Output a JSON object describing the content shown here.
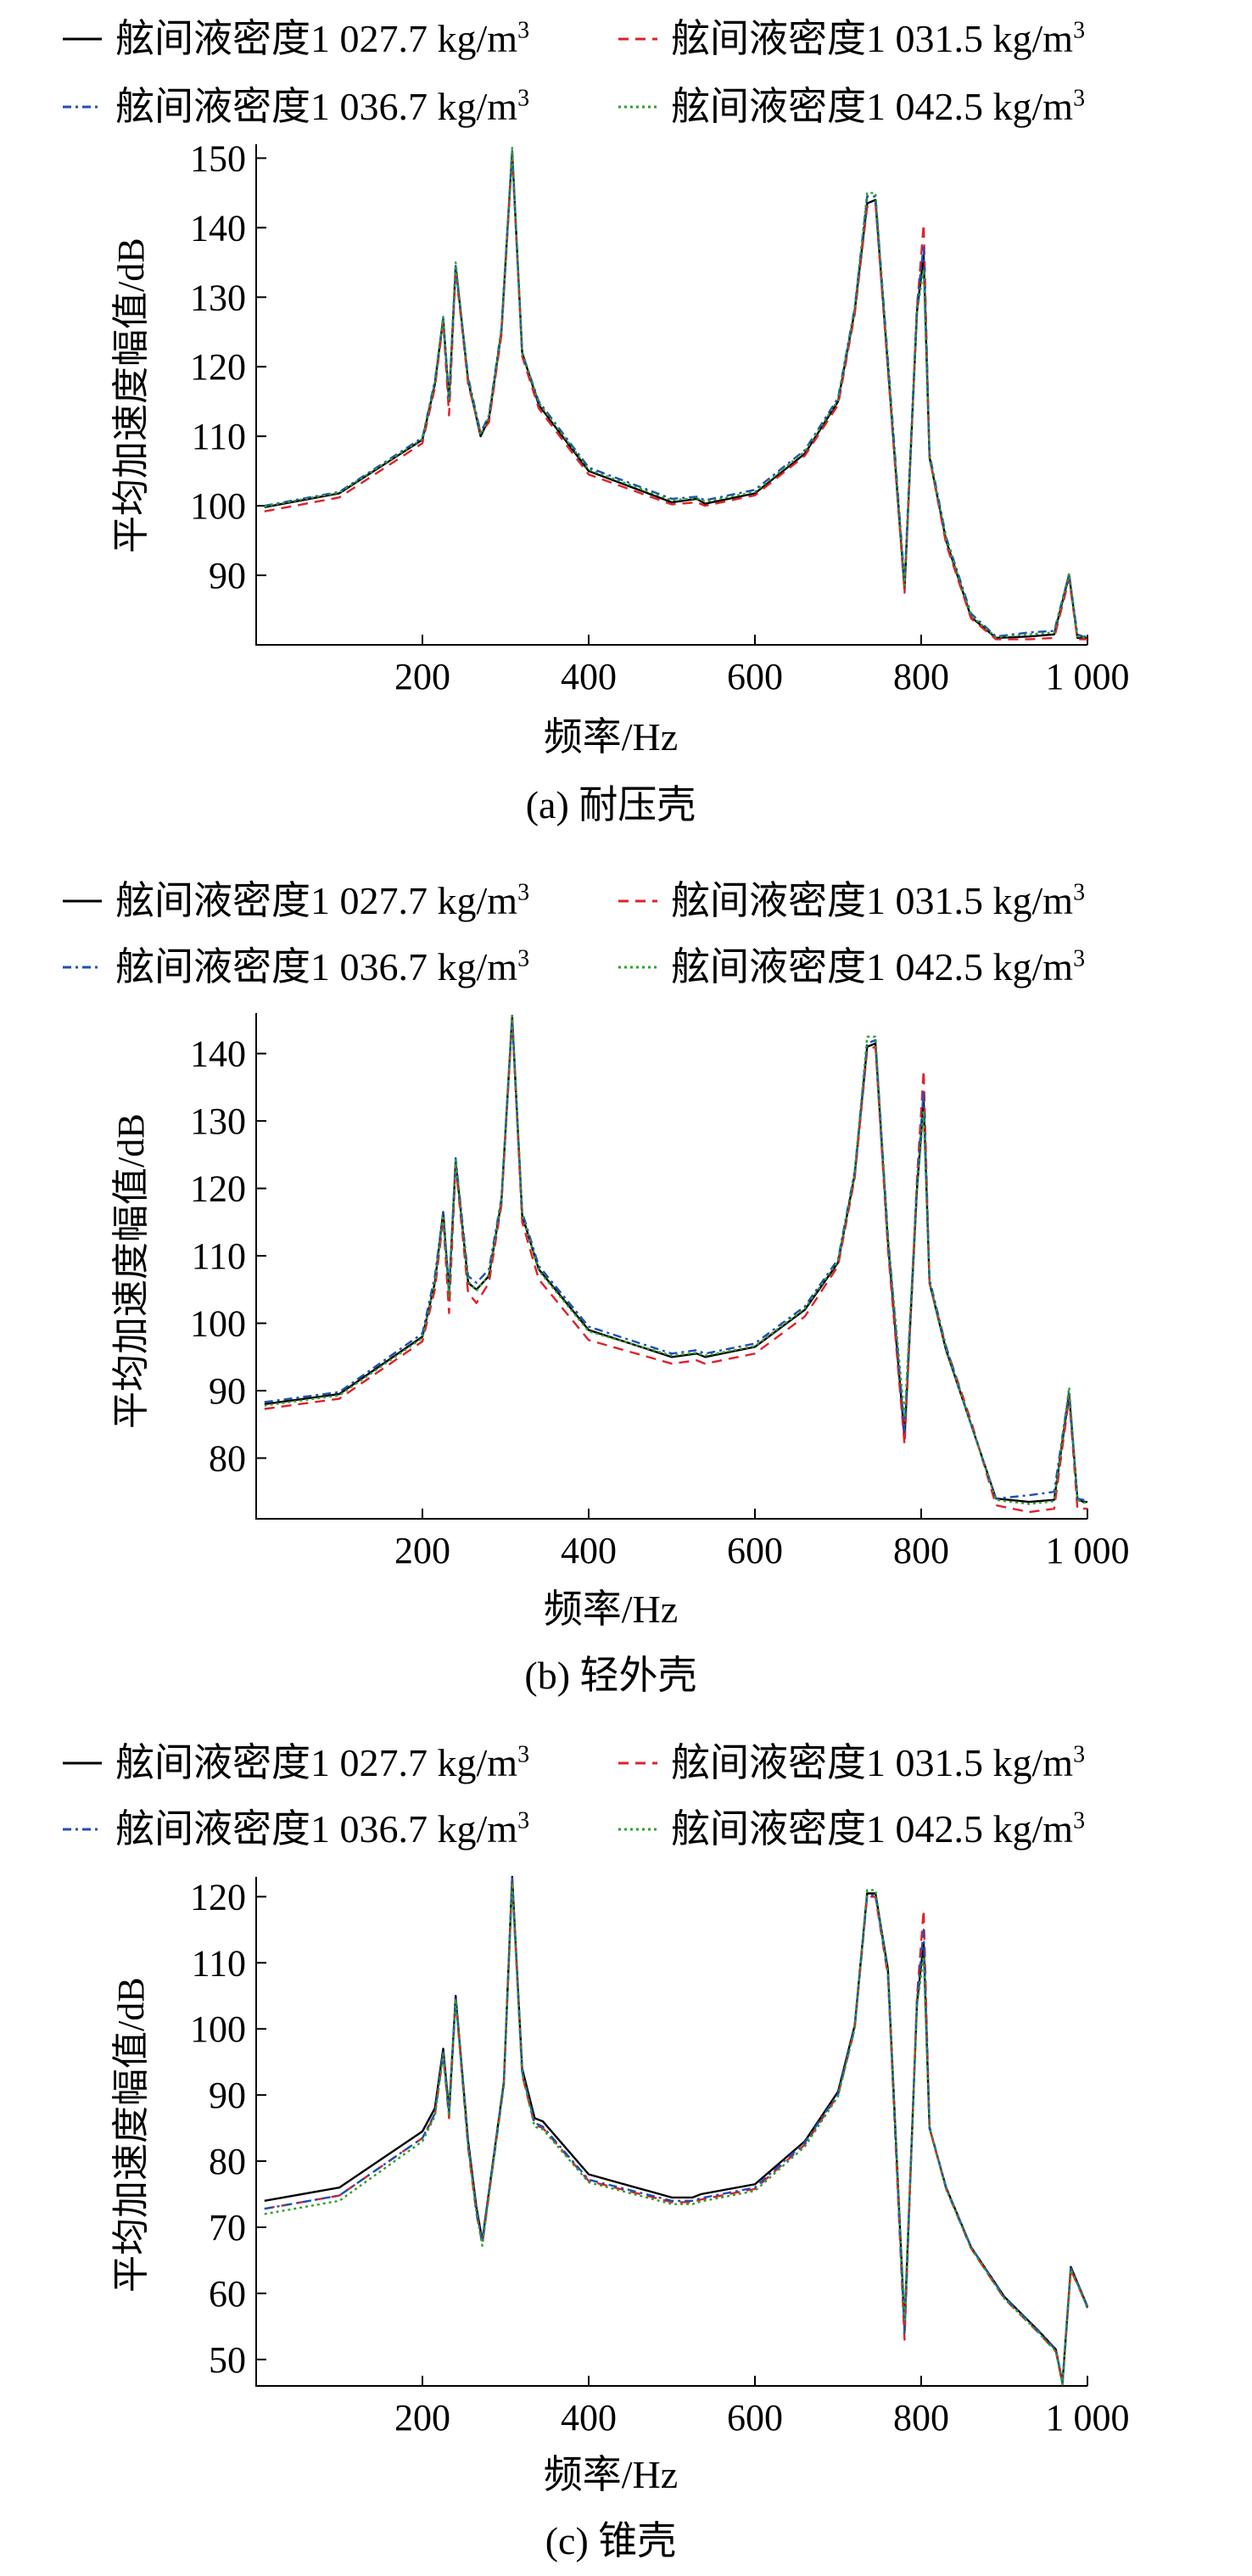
{
  "legend": {
    "items": [
      {
        "label": "舷间液密度1 027.7 kg/m",
        "sup": "3",
        "color": "#000000",
        "dash": ""
      },
      {
        "label": "舷间液密度1 031.5 kg/m",
        "sup": "3",
        "color": "#e0202a",
        "dash": "12,8"
      },
      {
        "label": "舷间液密度1 036.7 kg/m",
        "sup": "3",
        "color": "#1f4fb5",
        "dash": "10,5,3,5"
      },
      {
        "label": "舷间液密度1 042.5 kg/m",
        "sup": "3",
        "color": "#2ca02c",
        "dash": "3,4"
      }
    ]
  },
  "chart_data": [
    {
      "type": "line",
      "caption": "(a) 耐压壳",
      "xlabel": "频率/Hz",
      "ylabel": "平均加速度幅值/dB",
      "xlim": [
        0,
        1000
      ],
      "ylim": [
        80,
        152
      ],
      "xticks": [
        {
          "v": 200,
          "t": "200"
        },
        {
          "v": 400,
          "t": "400"
        },
        {
          "v": 600,
          "t": "600"
        },
        {
          "v": 800,
          "t": "800"
        },
        {
          "v": 1000,
          "t": "1 000"
        }
      ],
      "yticks": [
        {
          "v": 90,
          "t": "90"
        },
        {
          "v": 100,
          "t": "100"
        },
        {
          "v": 110,
          "t": "110"
        },
        {
          "v": 120,
          "t": "120"
        },
        {
          "v": 130,
          "t": "130"
        },
        {
          "v": 140,
          "t": "140"
        },
        {
          "v": 150,
          "t": "150"
        }
      ],
      "x": [
        10,
        100,
        200,
        215,
        225,
        232,
        240,
        255,
        270,
        280,
        295,
        308,
        320,
        340,
        400,
        500,
        530,
        540,
        600,
        660,
        700,
        720,
        735,
        745,
        760,
        780,
        795,
        803,
        810,
        830,
        860,
        890,
        930,
        960,
        978,
        988,
        995,
        1000
      ],
      "series": [
        {
          "name": "舷间液密度1 027.7 kg/m3",
          "values": [
            99.8,
            101.8,
            109.5,
            117.5,
            127.0,
            115.0,
            134.5,
            118.0,
            110.0,
            112.5,
            125.0,
            151.0,
            122.0,
            114.5,
            105.0,
            100.5,
            101.0,
            100.3,
            101.8,
            107.5,
            115.0,
            128.0,
            143.5,
            144.0,
            120.0,
            88.0,
            128.0,
            136.0,
            107.0,
            95.0,
            84.0,
            81.0,
            81.2,
            81.5,
            90.0,
            81.0,
            81.0,
            81.0
          ]
        },
        {
          "name": "舷间液密度1 031.5 kg/m3",
          "values": [
            99.2,
            101.2,
            109.0,
            117.0,
            126.5,
            113.0,
            134.0,
            117.5,
            110.5,
            112.0,
            124.5,
            150.5,
            121.5,
            114.0,
            104.5,
            100.2,
            100.5,
            100.0,
            101.5,
            107.2,
            114.5,
            127.5,
            143.0,
            143.5,
            119.5,
            87.5,
            128.5,
            140.5,
            107.0,
            94.5,
            83.8,
            80.8,
            80.8,
            81.0,
            89.5,
            80.8,
            80.8,
            80.8
          ]
        },
        {
          "name": "舷间液密度1 036.7 kg/m3",
          "values": [
            100.0,
            102.0,
            109.8,
            118.0,
            127.0,
            115.5,
            134.5,
            118.5,
            110.5,
            113.0,
            125.5,
            151.0,
            122.0,
            115.0,
            105.5,
            101.0,
            101.3,
            100.8,
            102.3,
            108.0,
            115.5,
            128.5,
            144.5,
            144.5,
            121.0,
            89.0,
            129.0,
            137.5,
            107.5,
            95.5,
            84.5,
            81.2,
            81.8,
            82.0,
            90.2,
            81.5,
            81.2,
            81.2
          ]
        },
        {
          "name": "舷间液密度1 042.5 kg/m3",
          "values": [
            99.9,
            101.9,
            109.6,
            117.8,
            127.2,
            115.0,
            135.0,
            118.2,
            110.2,
            112.8,
            125.2,
            151.5,
            122.2,
            114.8,
            105.2,
            100.8,
            101.1,
            100.6,
            102.0,
            107.8,
            115.2,
            128.3,
            145.0,
            145.0,
            120.5,
            88.5,
            128.0,
            134.0,
            107.2,
            95.2,
            84.2,
            81.1,
            81.5,
            81.8,
            90.3,
            81.2,
            81.1,
            81.1
          ]
        }
      ]
    },
    {
      "type": "line",
      "caption": "(b) 轻外壳",
      "xlabel": "频率/Hz",
      "ylabel": "平均加速度幅值/dB",
      "xlim": [
        0,
        1000
      ],
      "ylim": [
        71,
        146
      ],
      "xticks": [
        {
          "v": 200,
          "t": "200"
        },
        {
          "v": 400,
          "t": "400"
        },
        {
          "v": 600,
          "t": "600"
        },
        {
          "v": 800,
          "t": "800"
        },
        {
          "v": 1000,
          "t": "1 000"
        }
      ],
      "yticks": [
        {
          "v": 80,
          "t": "80"
        },
        {
          "v": 90,
          "t": "90"
        },
        {
          "v": 100,
          "t": "100"
        },
        {
          "v": 110,
          "t": "110"
        },
        {
          "v": 120,
          "t": "120"
        },
        {
          "v": 130,
          "t": "130"
        },
        {
          "v": 140,
          "t": "140"
        }
      ],
      "x": [
        10,
        100,
        200,
        215,
        225,
        232,
        240,
        255,
        265,
        280,
        295,
        308,
        320,
        340,
        400,
        500,
        530,
        540,
        600,
        660,
        700,
        720,
        735,
        745,
        760,
        780,
        795,
        803,
        810,
        830,
        860,
        890,
        930,
        960,
        978,
        988,
        995,
        1000
      ],
      "series": [
        {
          "name": "舷间液密度1 027.7 kg/m3",
          "values": [
            88.0,
            89.5,
            98.0,
            106.0,
            116.5,
            104.5,
            124.0,
            106.0,
            105.0,
            107.0,
            118.0,
            145.5,
            116.0,
            108.0,
            99.0,
            95.0,
            95.5,
            95.0,
            96.5,
            102.0,
            109.0,
            122.0,
            141.0,
            141.5,
            112.0,
            83.0,
            120.0,
            133.0,
            106.0,
            96.0,
            85.0,
            74.0,
            73.5,
            73.8,
            89.5,
            74.0,
            73.5,
            73.5
          ]
        },
        {
          "name": "舷间液密度1 031.5 kg/m3",
          "values": [
            87.3,
            88.8,
            97.3,
            105.0,
            115.5,
            101.5,
            123.5,
            104.5,
            103.0,
            106.0,
            117.5,
            145.0,
            115.0,
            106.5,
            97.5,
            94.0,
            94.5,
            94.0,
            95.5,
            101.0,
            108.5,
            121.5,
            140.5,
            141.0,
            111.0,
            82.0,
            121.5,
            137.5,
            106.0,
            96.5,
            85.5,
            73.0,
            72.0,
            72.5,
            89.0,
            72.5,
            72.5,
            72.5
          ]
        },
        {
          "name": "舷间液密度1 036.7 kg/m3",
          "values": [
            88.3,
            89.8,
            98.5,
            107.0,
            116.5,
            105.0,
            124.5,
            107.0,
            106.0,
            108.0,
            118.5,
            145.5,
            116.5,
            108.5,
            99.5,
            95.5,
            96.0,
            95.5,
            97.0,
            102.5,
            109.5,
            122.5,
            141.5,
            142.0,
            113.0,
            84.0,
            121.0,
            134.5,
            106.5,
            96.5,
            85.0,
            74.0,
            74.5,
            75.0,
            90.0,
            74.0,
            73.8,
            73.8
          ]
        },
        {
          "name": "舷间液密度1 042.5 kg/m3",
          "values": [
            87.8,
            89.3,
            97.8,
            106.0,
            116.0,
            104.0,
            124.2,
            106.2,
            104.8,
            107.2,
            118.2,
            146.0,
            116.2,
            107.8,
            98.8,
            95.2,
            95.6,
            95.2,
            96.6,
            102.2,
            109.2,
            122.2,
            142.5,
            142.5,
            112.5,
            86.0,
            120.0,
            131.5,
            106.2,
            96.2,
            85.0,
            73.8,
            73.2,
            73.6,
            90.5,
            73.8,
            73.4,
            73.4
          ]
        }
      ]
    },
    {
      "type": "line",
      "caption": "(c) 锥壳",
      "xlabel": "频率/Hz",
      "ylabel": "平均加速度幅值/dB",
      "xlim": [
        0,
        1000
      ],
      "ylim": [
        46,
        123
      ],
      "xticks": [
        {
          "v": 200,
          "t": "200"
        },
        {
          "v": 400,
          "t": "400"
        },
        {
          "v": 600,
          "t": "600"
        },
        {
          "v": 800,
          "t": "800"
        },
        {
          "v": 1000,
          "t": "1 000"
        }
      ],
      "yticks": [
        {
          "v": 50,
          "t": "50"
        },
        {
          "v": 60,
          "t": "60"
        },
        {
          "v": 70,
          "t": "70"
        },
        {
          "v": 80,
          "t": "80"
        },
        {
          "v": 90,
          "t": "90"
        },
        {
          "v": 100,
          "t": "100"
        },
        {
          "v": 110,
          "t": "110"
        },
        {
          "v": 120,
          "t": "120"
        }
      ],
      "x": [
        10,
        100,
        200,
        215,
        225,
        232,
        240,
        255,
        265,
        272,
        285,
        298,
        308,
        320,
        335,
        345,
        400,
        500,
        525,
        535,
        600,
        660,
        700,
        720,
        735,
        745,
        760,
        780,
        795,
        803,
        810,
        830,
        860,
        900,
        940,
        962,
        970,
        980,
        990,
        1000
      ],
      "series": [
        {
          "name": "舷间液密度1 027.7 kg/m3",
          "values": [
            74.0,
            76.0,
            84.5,
            88.0,
            97.0,
            87.5,
            105.0,
            83.0,
            73.0,
            68.0,
            80.0,
            92.0,
            123.0,
            94.0,
            86.5,
            86.0,
            78.0,
            74.5,
            74.5,
            75.0,
            76.5,
            83.0,
            90.5,
            100.5,
            120.5,
            120.5,
            109.0,
            55.0,
            104.0,
            113.0,
            85.0,
            76.0,
            67.0,
            59.5,
            54.5,
            51.5,
            46.5,
            64.0,
            61.0,
            58.0
          ]
        },
        {
          "name": "舷间液密度1 031.5 kg/m3",
          "values": [
            72.8,
            74.8,
            83.5,
            87.0,
            96.0,
            86.5,
            104.5,
            82.0,
            72.0,
            67.5,
            79.5,
            91.5,
            122.5,
            93.0,
            85.5,
            85.0,
            77.0,
            73.8,
            73.8,
            74.2,
            75.8,
            82.5,
            90.0,
            100.0,
            120.0,
            120.0,
            108.0,
            53.0,
            105.0,
            118.0,
            85.0,
            75.8,
            66.8,
            59.2,
            54.2,
            51.2,
            46.2,
            63.5,
            60.8,
            57.8
          ]
        },
        {
          "name": "舷间液密度1 036.7 kg/m3",
          "values": [
            72.8,
            74.8,
            83.5,
            87.2,
            96.5,
            87.0,
            104.8,
            82.5,
            72.5,
            67.8,
            79.8,
            91.8,
            122.8,
            93.5,
            85.8,
            85.2,
            77.2,
            74.0,
            74.0,
            74.4,
            76.0,
            82.8,
            90.2,
            100.2,
            120.2,
            120.2,
            108.5,
            54.0,
            104.5,
            115.0,
            85.2,
            76.0,
            67.0,
            59.4,
            54.4,
            51.4,
            46.4,
            63.8,
            60.9,
            57.9
          ]
        },
        {
          "name": "舷间液密度1 042.5 kg/m3",
          "values": [
            72.0,
            74.0,
            83.0,
            86.8,
            96.2,
            86.8,
            104.5,
            82.2,
            72.2,
            67.2,
            79.5,
            91.5,
            122.0,
            93.2,
            85.2,
            84.8,
            76.8,
            73.5,
            73.5,
            73.9,
            75.5,
            82.2,
            89.8,
            100.0,
            121.0,
            121.0,
            108.2,
            56.0,
            103.5,
            111.0,
            85.0,
            75.8,
            66.8,
            59.2,
            54.2,
            51.2,
            46.2,
            63.6,
            60.8,
            57.8
          ]
        }
      ]
    }
  ]
}
